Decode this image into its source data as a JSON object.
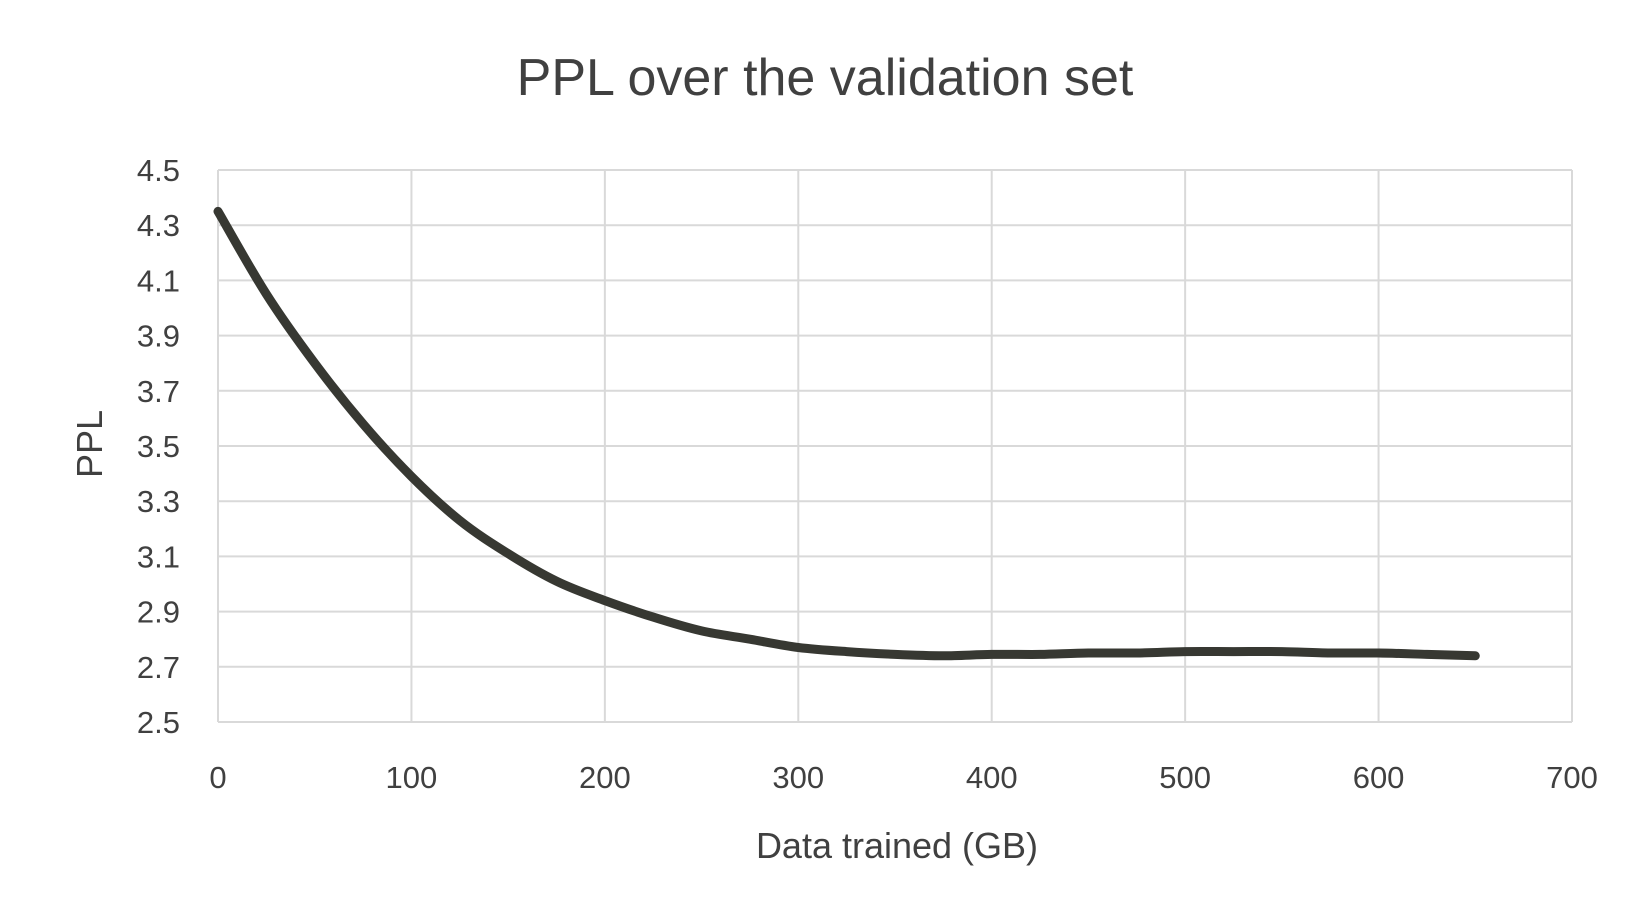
{
  "chart_data": {
    "type": "line",
    "title": "PPL over the validation set",
    "xlabel": "Data trained (GB)",
    "ylabel": "PPL",
    "xlim": [
      0,
      700
    ],
    "ylim": [
      2.5,
      4.5
    ],
    "x_ticks": [
      "0",
      "100",
      "200",
      "300",
      "400",
      "500",
      "600",
      "700"
    ],
    "y_ticks": [
      "2.5",
      "2.7",
      "2.9",
      "3.1",
      "3.3",
      "3.5",
      "3.7",
      "3.9",
      "4.1",
      "4.3",
      "4.5"
    ],
    "grid": true,
    "colors": {
      "line": "#373832",
      "grid": "#d9d9d9",
      "text": "#404040"
    },
    "series": [
      {
        "x": [
          0,
          25,
          50,
          75,
          100,
          125,
          150,
          175,
          200,
          225,
          250,
          275,
          300,
          325,
          350,
          375,
          400,
          425,
          450,
          475,
          500,
          525,
          550,
          575,
          600,
          625,
          650
        ],
        "y": [
          4.35,
          4.05,
          3.8,
          3.58,
          3.39,
          3.23,
          3.11,
          3.01,
          2.94,
          2.88,
          2.83,
          2.8,
          2.77,
          2.755,
          2.745,
          2.74,
          2.745,
          2.745,
          2.75,
          2.75,
          2.755,
          2.755,
          2.755,
          2.75,
          2.75,
          2.745,
          2.74
        ]
      }
    ]
  }
}
